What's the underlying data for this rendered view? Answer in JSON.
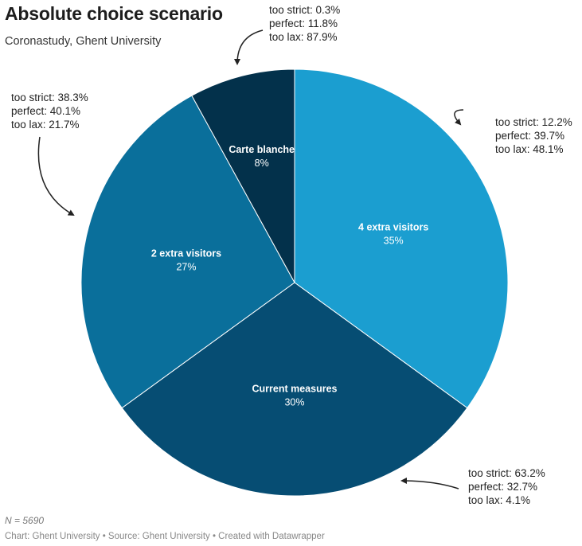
{
  "chart_data": {
    "type": "pie",
    "title": "Absolute choice scenario",
    "subtitle": "Coronastudy, Ghent University",
    "slices": [
      {
        "label": "4 extra visitors",
        "value": 35,
        "value_label": "35%",
        "color": "#1b9ed0",
        "annotation": [
          "too strict: 12.2%",
          "perfect: 39.7%",
          "too lax: 48.1%"
        ]
      },
      {
        "label": "Current measures",
        "value": 30,
        "value_label": "30%",
        "color": "#064d73",
        "annotation": [
          "too strict: 63.2%",
          "perfect: 32.7%",
          "too lax: 4.1%"
        ]
      },
      {
        "label": "2 extra visitors",
        "value": 27,
        "value_label": "27%",
        "color": "#0a6f9b",
        "annotation": [
          "too strict: 38.3%",
          "perfect: 40.1%",
          "too lax: 21.7%"
        ]
      },
      {
        "label": "Carte blanche",
        "value": 8,
        "value_label": "8%",
        "color": "#03314b",
        "annotation": [
          "too strict: 0.3%",
          "perfect: 11.8%",
          "too lax: 87.9%"
        ]
      }
    ],
    "note": "N = 5690",
    "footer": "Chart: Ghent University • Source: Ghent University • Created with Datawrapper"
  }
}
